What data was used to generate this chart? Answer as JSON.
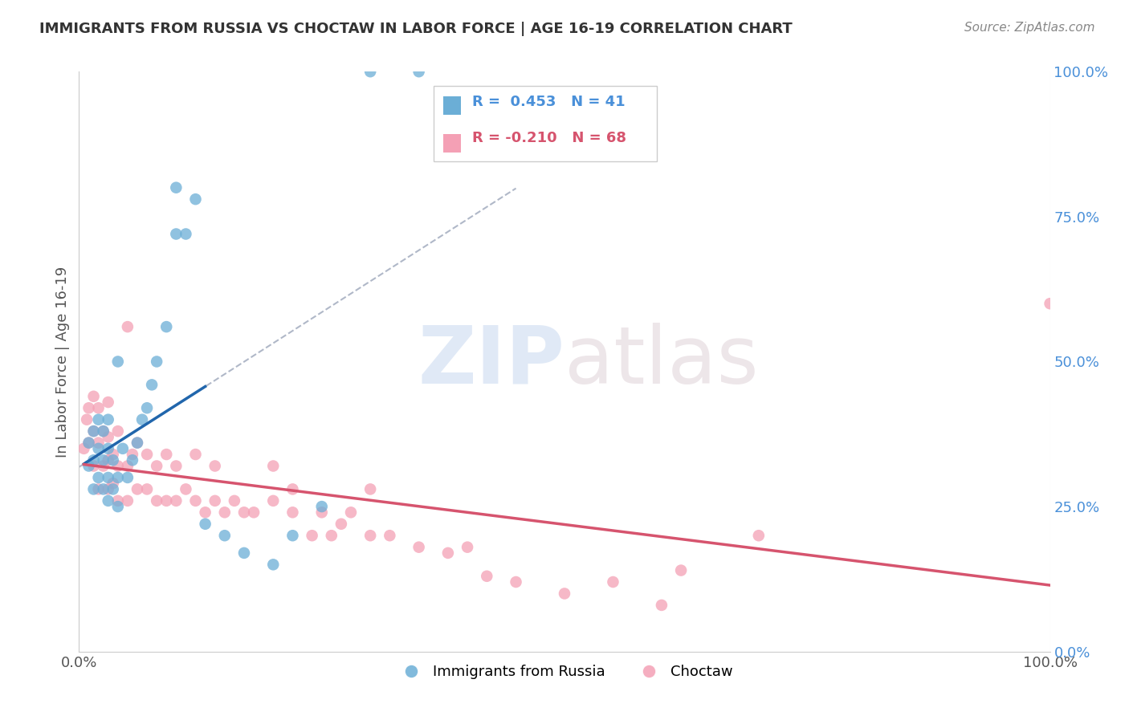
{
  "title": "IMMIGRANTS FROM RUSSIA VS CHOCTAW IN LABOR FORCE | AGE 16-19 CORRELATION CHART",
  "source": "Source: ZipAtlas.com",
  "ylabel": "In Labor Force | Age 16-19",
  "xlim": [
    0,
    1.0
  ],
  "ylim": [
    0,
    1.0
  ],
  "legend1_label": "Immigrants from Russia",
  "legend2_label": "Choctaw",
  "R1": 0.453,
  "N1": 41,
  "R2": -0.21,
  "N2": 68,
  "blue_color": "#6baed6",
  "pink_color": "#f4a0b5",
  "blue_line_color": "#2166ac",
  "pink_line_color": "#d6546e",
  "dash_color": "#b0b8c8",
  "watermark_zip": "ZIP",
  "watermark_atlas": "atlas",
  "background_color": "#ffffff",
  "grid_color": "#e0e0e0",
  "blue_scatter_x": [
    0.01,
    0.01,
    0.015,
    0.015,
    0.015,
    0.02,
    0.02,
    0.02,
    0.025,
    0.025,
    0.025,
    0.03,
    0.03,
    0.03,
    0.03,
    0.035,
    0.035,
    0.04,
    0.04,
    0.04,
    0.045,
    0.05,
    0.055,
    0.06,
    0.065,
    0.07,
    0.075,
    0.08,
    0.09,
    0.1,
    0.1,
    0.11,
    0.12,
    0.13,
    0.15,
    0.17,
    0.2,
    0.22,
    0.25,
    0.3,
    0.35
  ],
  "blue_scatter_y": [
    0.32,
    0.36,
    0.28,
    0.33,
    0.38,
    0.3,
    0.35,
    0.4,
    0.28,
    0.33,
    0.38,
    0.26,
    0.3,
    0.35,
    0.4,
    0.28,
    0.33,
    0.25,
    0.3,
    0.5,
    0.35,
    0.3,
    0.33,
    0.36,
    0.4,
    0.42,
    0.46,
    0.5,
    0.56,
    0.72,
    0.8,
    0.72,
    0.78,
    0.22,
    0.2,
    0.17,
    0.15,
    0.2,
    0.25,
    1.0,
    1.0
  ],
  "pink_scatter_x": [
    0.005,
    0.008,
    0.01,
    0.01,
    0.015,
    0.015,
    0.015,
    0.02,
    0.02,
    0.02,
    0.025,
    0.025,
    0.03,
    0.03,
    0.03,
    0.03,
    0.035,
    0.035,
    0.04,
    0.04,
    0.04,
    0.05,
    0.05,
    0.05,
    0.055,
    0.06,
    0.06,
    0.07,
    0.07,
    0.08,
    0.08,
    0.09,
    0.09,
    0.1,
    0.1,
    0.11,
    0.12,
    0.12,
    0.13,
    0.14,
    0.14,
    0.15,
    0.16,
    0.17,
    0.18,
    0.2,
    0.2,
    0.22,
    0.22,
    0.24,
    0.25,
    0.26,
    0.27,
    0.28,
    0.3,
    0.3,
    0.32,
    0.35,
    0.38,
    0.4,
    0.42,
    0.45,
    0.5,
    0.55,
    0.6,
    0.62,
    0.7,
    1.0
  ],
  "pink_scatter_y": [
    0.35,
    0.4,
    0.36,
    0.42,
    0.32,
    0.38,
    0.44,
    0.28,
    0.36,
    0.42,
    0.32,
    0.38,
    0.28,
    0.33,
    0.37,
    0.43,
    0.29,
    0.34,
    0.26,
    0.32,
    0.38,
    0.26,
    0.32,
    0.56,
    0.34,
    0.28,
    0.36,
    0.28,
    0.34,
    0.26,
    0.32,
    0.26,
    0.34,
    0.26,
    0.32,
    0.28,
    0.26,
    0.34,
    0.24,
    0.26,
    0.32,
    0.24,
    0.26,
    0.24,
    0.24,
    0.26,
    0.32,
    0.24,
    0.28,
    0.2,
    0.24,
    0.2,
    0.22,
    0.24,
    0.2,
    0.28,
    0.2,
    0.18,
    0.17,
    0.18,
    0.13,
    0.12,
    0.1,
    0.12,
    0.08,
    0.14,
    0.2,
    0.6
  ]
}
